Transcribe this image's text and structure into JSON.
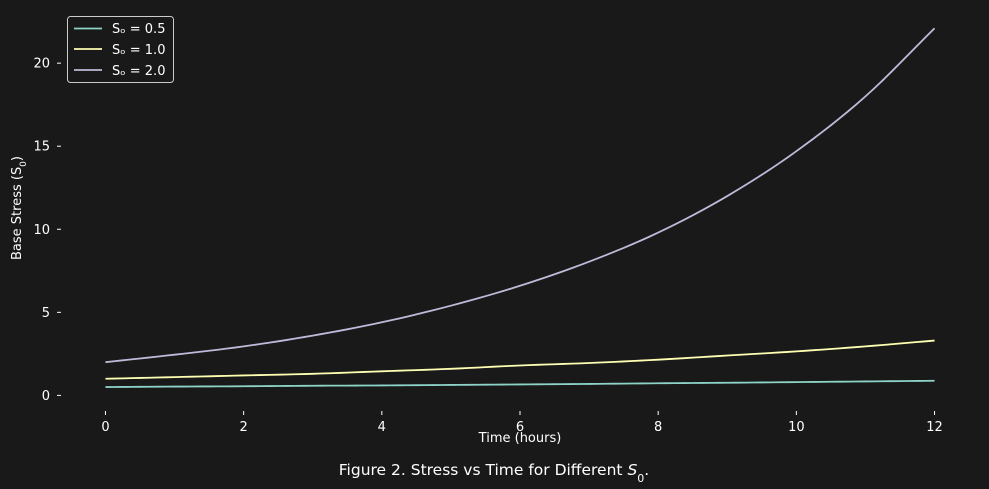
{
  "chart_data": {
    "type": "line",
    "title": "",
    "xlabel": "Time (hours)",
    "ylabel": "Base Stress (S",
    "ylabel_sub": "0",
    "ylabel_end": ")",
    "caption": "Figure 2. Stress vs Time for Different ",
    "caption_symbol": "S",
    "caption_sub": "0",
    "caption_end": ".",
    "xlim": [
      -0.6,
      12.6
    ],
    "ylim": [
      -1.0,
      23.2
    ],
    "xticks": [
      0,
      2,
      4,
      6,
      8,
      10,
      12
    ],
    "yticks": [
      0,
      5,
      10,
      15,
      20
    ],
    "grid": false,
    "legend_position": "top-left",
    "x": [
      0,
      1,
      2,
      3,
      4,
      5,
      6,
      7,
      8,
      9,
      10,
      11,
      12
    ],
    "series": [
      {
        "name": "Sₒ = 0.5",
        "color": "#8dd3c7",
        "values": [
          0.5,
          0.53,
          0.55,
          0.58,
          0.6,
          0.63,
          0.66,
          0.69,
          0.73,
          0.76,
          0.8,
          0.84,
          0.88
        ]
      },
      {
        "name": "Sₒ = 1.0",
        "color": "#ffffb3",
        "values": [
          1.0,
          1.1,
          1.2,
          1.3,
          1.45,
          1.6,
          1.8,
          1.95,
          2.15,
          2.4,
          2.65,
          2.95,
          3.3
        ]
      },
      {
        "name": "Sₒ = 2.0",
        "color": "#bebada",
        "values": [
          2.0,
          2.45,
          2.95,
          3.6,
          4.4,
          5.4,
          6.6,
          8.05,
          9.8,
          12.0,
          14.7,
          18.0,
          22.1
        ]
      }
    ]
  }
}
